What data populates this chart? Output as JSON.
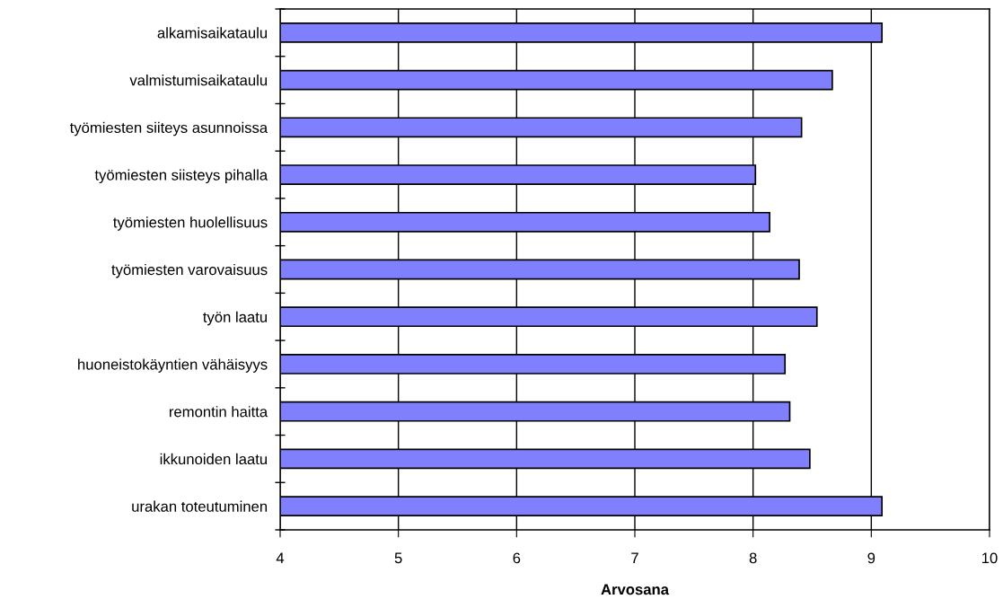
{
  "chart_data": {
    "type": "bar",
    "orientation": "horizontal",
    "categories": [
      "alkamisaikataulu",
      "valmistumisaikataulu",
      "työmiesten siiteys asunnoissa",
      "työmiesten siisteys pihalla",
      "työmiesten huolellisuus",
      "työmiesten varovaisuus",
      "työn laatu",
      "huoneistokäyntien vähäisyys",
      "remontin haitta",
      "ikkunoiden laatu",
      "urakan toteutuminen"
    ],
    "values": [
      9.09,
      8.67,
      8.41,
      8.02,
      8.14,
      8.39,
      8.54,
      8.27,
      8.31,
      8.48,
      9.09
    ],
    "color": "#8080ff",
    "xlabel": "Arvosana",
    "xlim": [
      4,
      10
    ],
    "xticks": [
      4,
      5,
      6,
      7,
      8,
      9,
      10
    ],
    "grid": "x"
  }
}
